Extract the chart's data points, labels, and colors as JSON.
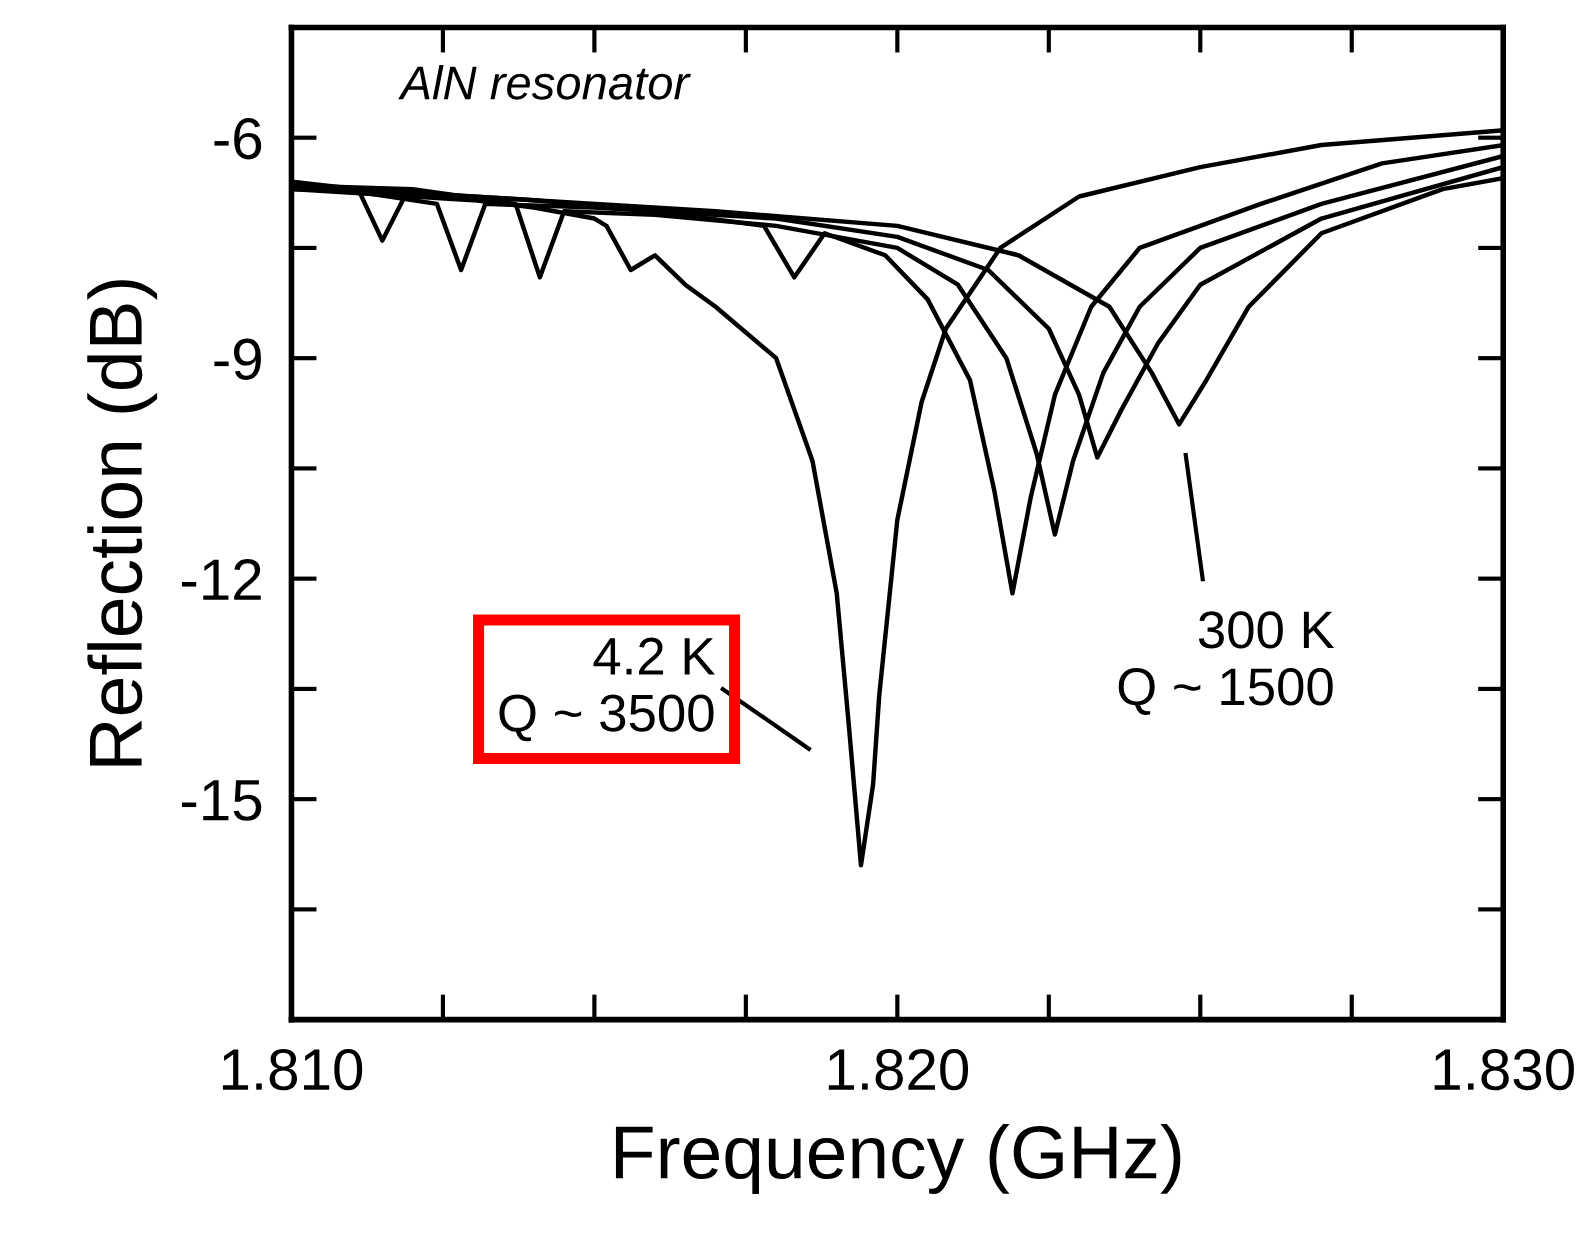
{
  "chart_data": {
    "type": "line",
    "xlabel": "Frequency (GHz)",
    "ylabel": "Reflection (dB)",
    "xlim": [
      1.81,
      1.83
    ],
    "ylim": [
      -18,
      -4.5
    ],
    "xticks": [
      {
        "value": 1.81,
        "label": "1.810"
      },
      {
        "value": 1.8125,
        "label": null
      },
      {
        "value": 1.815,
        "label": null
      },
      {
        "value": 1.8175,
        "label": null
      },
      {
        "value": 1.82,
        "label": "1.820"
      },
      {
        "value": 1.8225,
        "label": null
      },
      {
        "value": 1.825,
        "label": null
      },
      {
        "value": 1.8275,
        "label": null
      },
      {
        "value": 1.83,
        "label": "1.830"
      }
    ],
    "yticks": [
      {
        "value": -16.5,
        "label": null
      },
      -15,
      {
        "value": -13.5,
        "label": null
      },
      -12,
      {
        "value": -10.5,
        "label": null
      },
      -9,
      {
        "value": -7.5,
        "label": null
      },
      -6,
      {
        "value": -4.5,
        "label": null
      }
    ],
    "grid": false,
    "legend": false,
    "marker": "none",
    "line_style": "solid",
    "annotations": [
      "AlN resonator",
      "4.2 K\nQ ~ 3500",
      "300 K\nQ ~ 1500"
    ],
    "series": [
      {
        "color": "#000000",
        "x": [
          1.81,
          1.811,
          1.812,
          1.813,
          1.814,
          1.815,
          1.8152,
          1.8156,
          1.816,
          1.8165,
          1.817,
          1.818,
          1.8186,
          1.819,
          1.8192,
          1.8194,
          1.8196,
          1.8197,
          1.82,
          1.8204,
          1.8208,
          1.8217,
          1.823,
          1.825,
          1.827,
          1.83
        ],
        "values": [
          -6.7,
          -6.75,
          -6.8,
          -6.85,
          -6.95,
          -7.1,
          -7.2,
          -7.8,
          -7.6,
          -8.0,
          -8.3,
          -9.0,
          -10.4,
          -12.2,
          -14.0,
          -15.9,
          -14.8,
          -13.6,
          -11.2,
          -9.6,
          -8.6,
          -7.5,
          -6.8,
          -6.4,
          -6.1,
          -5.9
        ]
      },
      {
        "color": "#000000",
        "x": [
          1.81,
          1.812,
          1.814,
          1.816,
          1.8178,
          1.8183,
          1.8188,
          1.8198,
          1.8205,
          1.8212,
          1.8216,
          1.8219,
          1.8222,
          1.8226,
          1.8232,
          1.824,
          1.826,
          1.828,
          1.83
        ],
        "values": [
          -6.7,
          -6.75,
          -6.85,
          -7.0,
          -7.2,
          -7.9,
          -7.3,
          -7.6,
          -8.2,
          -9.3,
          -10.8,
          -12.2,
          -10.9,
          -9.5,
          -8.3,
          -7.5,
          -6.9,
          -6.35,
          -6.1
        ]
      },
      {
        "color": "#000000",
        "x": [
          1.81,
          1.812,
          1.8137,
          1.8141,
          1.8145,
          1.816,
          1.818,
          1.82,
          1.821,
          1.8218,
          1.8223,
          1.8226,
          1.8229,
          1.8234,
          1.824,
          1.825,
          1.827,
          1.83
        ],
        "values": [
          -6.65,
          -6.7,
          -6.9,
          -7.9,
          -7.0,
          -7.05,
          -7.2,
          -7.5,
          -8.0,
          -9.0,
          -10.3,
          -11.4,
          -10.4,
          -9.2,
          -8.3,
          -7.5,
          -6.9,
          -6.25
        ]
      },
      {
        "color": "#000000",
        "x": [
          1.81,
          1.8124,
          1.8128,
          1.8132,
          1.815,
          1.818,
          1.82,
          1.8215,
          1.8225,
          1.823,
          1.8233,
          1.8237,
          1.8243,
          1.825,
          1.827,
          1.83
        ],
        "values": [
          -6.6,
          -6.9,
          -7.8,
          -6.9,
          -6.95,
          -7.1,
          -7.35,
          -7.8,
          -8.6,
          -9.5,
          -10.35,
          -9.7,
          -8.8,
          -8.0,
          -7.1,
          -6.4
        ]
      },
      {
        "color": "#000000",
        "x": [
          1.81,
          1.8111,
          1.8115,
          1.8119,
          1.814,
          1.817,
          1.82,
          1.822,
          1.8235,
          1.8242,
          1.82465,
          1.8251,
          1.8258,
          1.827,
          1.829,
          1.83
        ],
        "values": [
          -6.6,
          -6.7,
          -7.4,
          -6.75,
          -6.85,
          -7.0,
          -7.2,
          -7.6,
          -8.3,
          -9.2,
          -9.9,
          -9.3,
          -8.3,
          -7.3,
          -6.7,
          -6.55
        ]
      }
    ]
  }
}
